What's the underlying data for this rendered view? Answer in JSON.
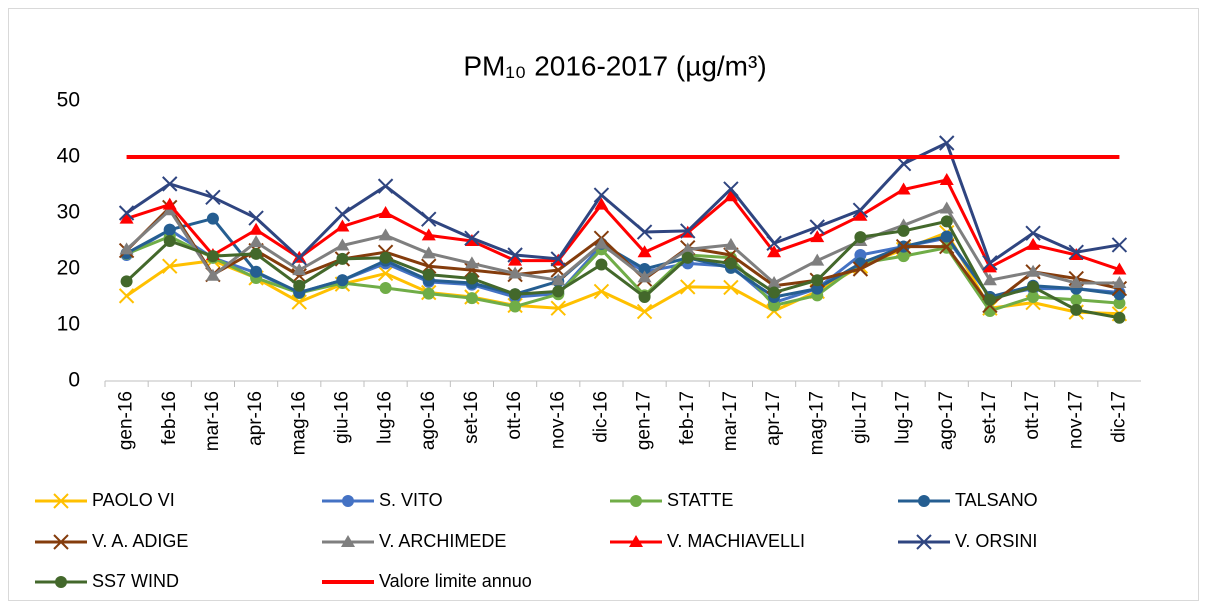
{
  "chart_data": {
    "type": "line",
    "title": "PM₁₀ 2016-2017 (µg/m³)",
    "categories": [
      "gen-16",
      "feb-16",
      "mar-16",
      "apr-16",
      "mag-16",
      "giu-16",
      "lug-16",
      "ago-16",
      "set-16",
      "ott-16",
      "nov-16",
      "dic-16",
      "gen-17",
      "feb-17",
      "mar-17",
      "apr-17",
      "mag-17",
      "giu-17",
      "lug-17",
      "ago-17",
      "set-17",
      "ott-17",
      "nov-17",
      "dic-17"
    ],
    "ylim": [
      0,
      50
    ],
    "yticks": [
      0,
      10,
      20,
      30,
      40,
      50
    ],
    "grid": false,
    "legend": "bottom",
    "series": [
      {
        "name": "PAOLO VI",
        "color": "#ffc000",
        "marker": "x",
        "values": [
          15.2,
          20.5,
          21.5,
          18.4,
          14.1,
          17.3,
          19.2,
          15.8,
          15,
          13.5,
          13,
          16,
          12.4,
          16.8,
          16.7,
          12.5,
          16,
          20.5,
          23.5,
          26.5,
          13,
          14,
          12.3,
          12
        ]
      },
      {
        "name": "S. VITO",
        "color": "#4472c4",
        "marker": "circle",
        "values": [
          22.5,
          27,
          22,
          19.3,
          15.8,
          18,
          21,
          17.7,
          17.2,
          15,
          15.6,
          24.2,
          19.5,
          21,
          20.5,
          14,
          16.5,
          22.5,
          24,
          25.5,
          15,
          16.5,
          16.5,
          15.8
        ]
      },
      {
        "name": "STATTE",
        "color": "#70ad47",
        "marker": "circle",
        "values": [
          22.7,
          25.8,
          22,
          18.4,
          15.7,
          17.5,
          16.6,
          15.6,
          14.8,
          13.3,
          15.5,
          23.5,
          15.3,
          22.5,
          22,
          13.5,
          15.3,
          21,
          22.3,
          23.8,
          12.5,
          15,
          14.5,
          13.9
        ]
      },
      {
        "name": "TALSANO",
        "color": "#255e91",
        "marker": "circle",
        "values": [
          22.8,
          27,
          29,
          19.5,
          15.8,
          18,
          21.5,
          18,
          17.5,
          15.5,
          17.8,
          24.5,
          20,
          22,
          20.2,
          15,
          16.5,
          21,
          24,
          25.8,
          15,
          17,
          16.5,
          15.5
        ]
      },
      {
        "name": "V. A. ADIGE",
        "color": "#843c0c",
        "marker": "x",
        "values": [
          23.3,
          31,
          19,
          23.3,
          18.8,
          21.8,
          23,
          20.5,
          19.8,
          19,
          19.8,
          25.5,
          18.2,
          23.8,
          22.5,
          17,
          18,
          20,
          24,
          24,
          13.5,
          19.5,
          18.3,
          16.5
        ]
      },
      {
        "name": "V. ARCHIMEDE",
        "color": "#7f7f7f",
        "marker": "triangle",
        "values": [
          23.5,
          30.5,
          18.8,
          24.8,
          19.8,
          24.2,
          26,
          22.8,
          21,
          19.2,
          18,
          24.5,
          18.5,
          23.5,
          24.3,
          17.5,
          21.5,
          25,
          27.8,
          30.8,
          18,
          19.5,
          17.5,
          17.5
        ]
      },
      {
        "name": "V. MACHIAVELLI",
        "color": "#ff0000",
        "marker": "triangle",
        "values": [
          29,
          31.5,
          22.5,
          27,
          22,
          27.6,
          30,
          26,
          25,
          21.5,
          21.5,
          31.5,
          23,
          26.5,
          33,
          23,
          25.7,
          29.5,
          34.2,
          35.9,
          20.3,
          24.3,
          22.5,
          19.9
        ]
      },
      {
        "name": "V. ORSINI",
        "color": "#2f4580",
        "marker": "x",
        "values": [
          30,
          35.2,
          32.8,
          29.1,
          22,
          29.8,
          34.8,
          28.9,
          25.5,
          22.5,
          21.8,
          33.2,
          26.6,
          26.8,
          34.3,
          24.6,
          27.5,
          30.5,
          38.8,
          42.5,
          21.1,
          26.4,
          23,
          24.3
        ]
      },
      {
        "name": "SS7 WIND",
        "color": "#43682b",
        "marker": "circle",
        "values": [
          17.8,
          25,
          22.3,
          22.7,
          17,
          21.8,
          22,
          19,
          18.3,
          15.5,
          16,
          20.8,
          15,
          22,
          21,
          15.8,
          18,
          25.7,
          26.8,
          28.5,
          14.5,
          16.8,
          12.7,
          11.3
        ]
      },
      {
        "name": "Valore limite annuo",
        "color": "#ff0000",
        "marker": "none",
        "values": [
          40,
          40,
          40,
          40,
          40,
          40,
          40,
          40,
          40,
          40,
          40,
          40,
          40,
          40,
          40,
          40,
          40,
          40,
          40,
          40,
          40,
          40,
          40,
          40
        ]
      }
    ]
  }
}
